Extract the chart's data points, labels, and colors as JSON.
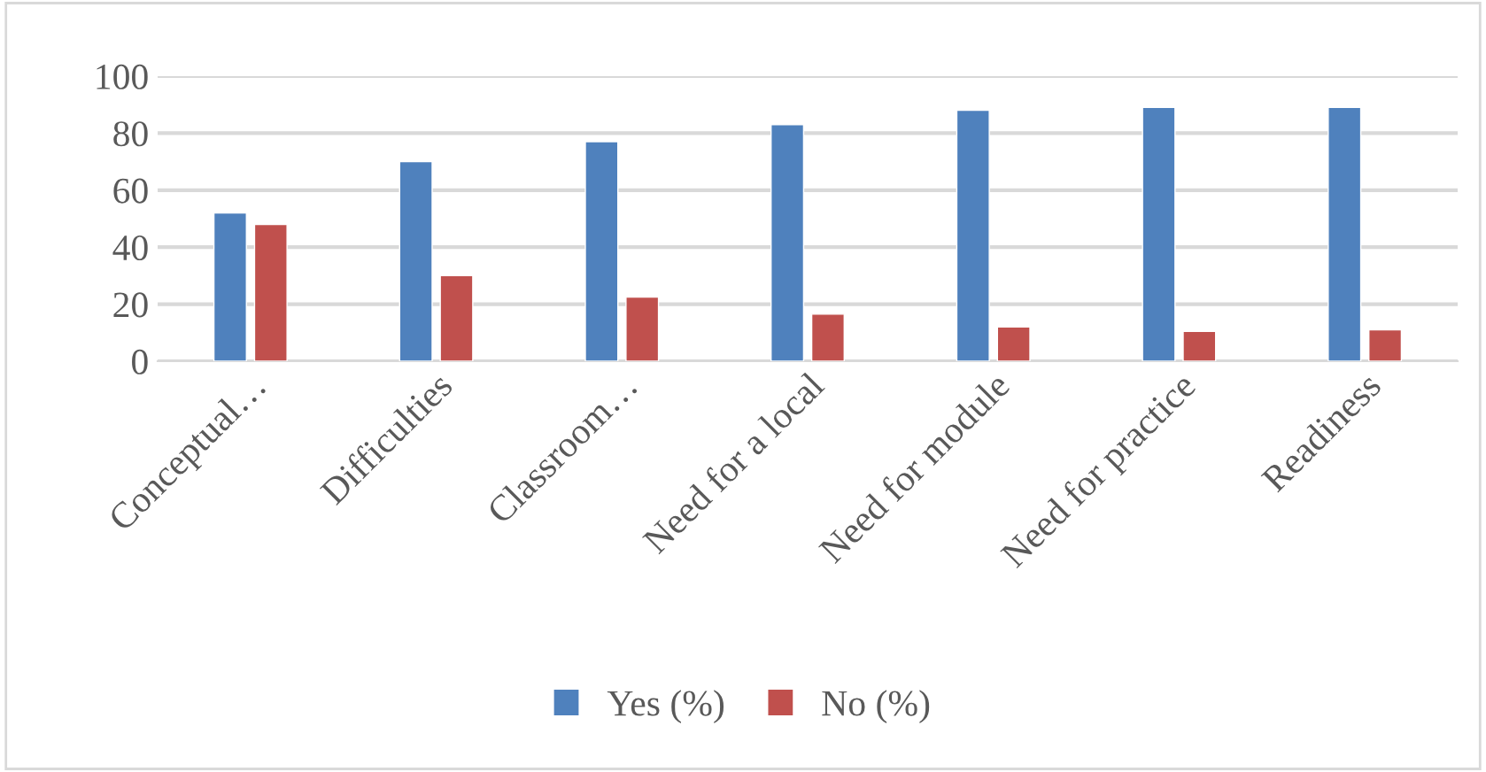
{
  "chart_data": {
    "type": "bar",
    "categories": [
      "Conceptual…",
      "Difficulties",
      "Classroom…",
      "Need for a local",
      "Need for module",
      "Need for practice",
      "Readiness"
    ],
    "series": [
      {
        "name": "Yes (%)",
        "color": "#4f81bd",
        "values": [
          52,
          70,
          77,
          83,
          88,
          89,
          89
        ]
      },
      {
        "name": "No (%)",
        "color": "#c0504d",
        "values": [
          48,
          30,
          22.5,
          16.5,
          12,
          10.5,
          11
        ]
      }
    ],
    "ylim": [
      0,
      100
    ],
    "yticks": [
      0,
      20,
      40,
      60,
      80,
      100
    ],
    "grid": "y",
    "legend": "bottom"
  }
}
